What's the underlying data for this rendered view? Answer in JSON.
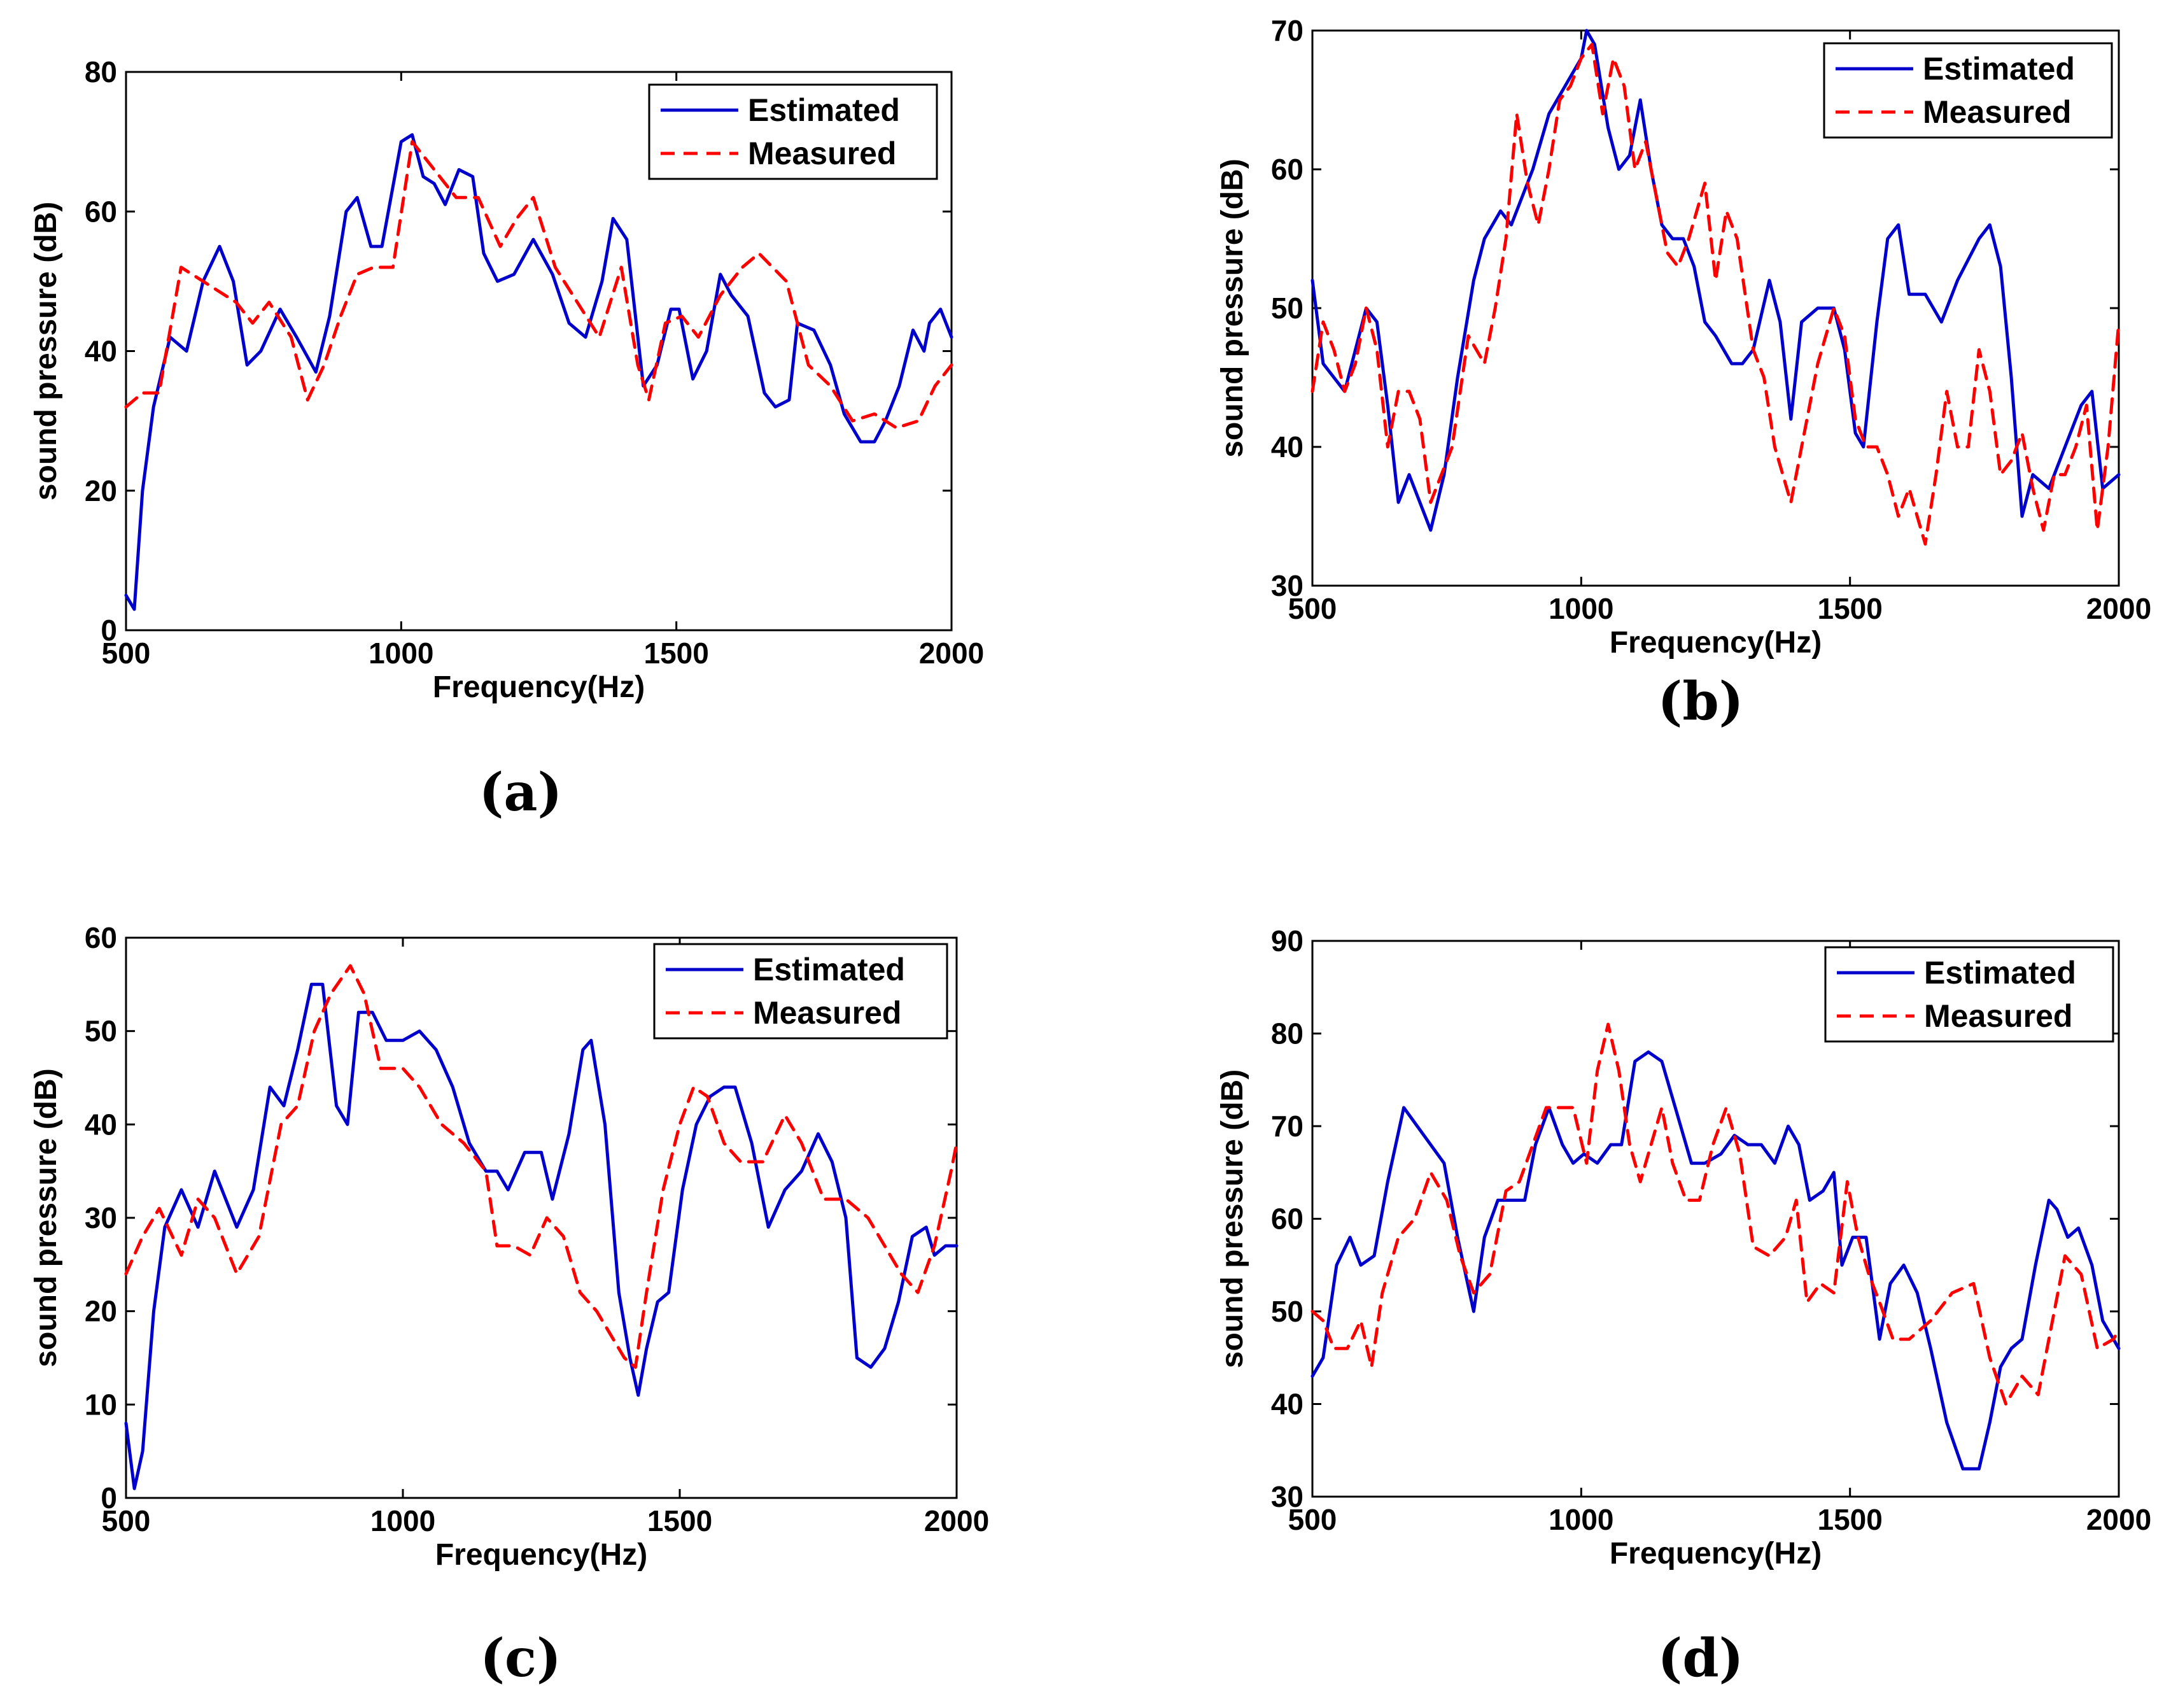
{
  "figure": {
    "panel_order": [
      "(a)",
      "(b)",
      "(c)",
      "(d)"
    ]
  },
  "chart_data": [
    {
      "type": "line",
      "panel": "(a)",
      "caption": "(a)",
      "xlabel": "Frequency(Hz)",
      "ylabel": "sound pressure (dB)",
      "xlim": [
        500,
        2000
      ],
      "ylim": [
        0,
        80
      ],
      "xticks": [
        500,
        1000,
        1500,
        2000
      ],
      "yticks": [
        0,
        20,
        40,
        60,
        80
      ],
      "legend_position": "top-right",
      "series": [
        {
          "name": "Estimated",
          "color": "#0000CC",
          "style": "solid",
          "x": [
            500,
            515,
            530,
            550,
            580,
            610,
            640,
            670,
            695,
            720,
            745,
            780,
            810,
            845,
            870,
            900,
            920,
            945,
            965,
            1000,
            1020,
            1040,
            1060,
            1080,
            1105,
            1130,
            1150,
            1175,
            1205,
            1240,
            1275,
            1305,
            1335,
            1365,
            1385,
            1410,
            1440,
            1465,
            1490,
            1505,
            1530,
            1555,
            1580,
            1600,
            1630,
            1660,
            1680,
            1705,
            1720,
            1750,
            1780,
            1805,
            1835,
            1860,
            1880,
            1905,
            1930,
            1950,
            1960,
            1980,
            2000
          ],
          "y": [
            5,
            3,
            20,
            32,
            42,
            40,
            50,
            55,
            50,
            38,
            40,
            46,
            42,
            37,
            45,
            60,
            62,
            55,
            55,
            70,
            71,
            65,
            64,
            61,
            66,
            65,
            54,
            50,
            51,
            56,
            51,
            44,
            42,
            50,
            59,
            56,
            35,
            38,
            46,
            46,
            36,
            40,
            51,
            48,
            45,
            34,
            32,
            33,
            44,
            43,
            38,
            31,
            27,
            27,
            30,
            35,
            43,
            40,
            44,
            46,
            42
          ]
        },
        {
          "name": "Measured",
          "color": "#FF0000",
          "style": "dashed",
          "x": [
            500,
            530,
            560,
            600,
            640,
            700,
            730,
            760,
            800,
            830,
            860,
            890,
            920,
            950,
            985,
            1020,
            1050,
            1100,
            1140,
            1180,
            1210,
            1240,
            1280,
            1320,
            1360,
            1400,
            1430,
            1450,
            1480,
            1510,
            1540,
            1580,
            1620,
            1650,
            1700,
            1740,
            1780,
            1820,
            1860,
            1900,
            1940,
            1970,
            2000
          ],
          "y": [
            32,
            34,
            34,
            52,
            50,
            47,
            44,
            47,
            42,
            33,
            38,
            45,
            51,
            52,
            52,
            70,
            67,
            62,
            62,
            55,
            59,
            62,
            52,
            47,
            42,
            52,
            38,
            33,
            44,
            45,
            42,
            48,
            52,
            54,
            50,
            38,
            35,
            30,
            31,
            29,
            30,
            35,
            38
          ]
        }
      ]
    },
    {
      "type": "line",
      "panel": "(b)",
      "caption": "(b)",
      "xlabel": "Frequency(Hz)",
      "ylabel": "sound pressure (dB)",
      "xlim": [
        500,
        2000
      ],
      "ylim": [
        30,
        70
      ],
      "xticks": [
        500,
        1000,
        1500,
        2000
      ],
      "yticks": [
        30,
        40,
        50,
        60,
        70
      ],
      "legend_position": "top-right",
      "series": [
        {
          "name": "Estimated",
          "color": "#0000CC",
          "style": "solid",
          "x": [
            500,
            520,
            540,
            560,
            580,
            600,
            620,
            640,
            660,
            680,
            700,
            720,
            745,
            770,
            800,
            820,
            850,
            870,
            890,
            910,
            940,
            970,
            1000,
            1010,
            1025,
            1050,
            1070,
            1090,
            1110,
            1130,
            1150,
            1170,
            1190,
            1210,
            1230,
            1250,
            1280,
            1300,
            1320,
            1350,
            1370,
            1390,
            1410,
            1440,
            1470,
            1490,
            1510,
            1525,
            1550,
            1570,
            1590,
            1610,
            1640,
            1670,
            1700,
            1740,
            1760,
            1780,
            1800,
            1820,
            1840,
            1870,
            1900,
            1930,
            1950,
            1970,
            2000
          ],
          "y": [
            52,
            46,
            45,
            44,
            47,
            50,
            49,
            43,
            36,
            38,
            36,
            34,
            38,
            45,
            52,
            55,
            57,
            56,
            58,
            60,
            64,
            66,
            68,
            70,
            69,
            63,
            60,
            61,
            65,
            60,
            56,
            55,
            55,
            53,
            49,
            48,
            46,
            46,
            47,
            52,
            49,
            42,
            49,
            50,
            50,
            47,
            41,
            40,
            49,
            55,
            56,
            51,
            51,
            49,
            52,
            55,
            56,
            53,
            45,
            35,
            38,
            37,
            40,
            43,
            44,
            37,
            38
          ]
        },
        {
          "name": "Measured",
          "color": "#FF0000",
          "style": "dashed",
          "x": [
            500,
            520,
            540,
            560,
            580,
            600,
            620,
            640,
            660,
            680,
            700,
            720,
            740,
            760,
            790,
            820,
            840,
            860,
            880,
            900,
            920,
            940,
            960,
            980,
            1000,
            1020,
            1040,
            1060,
            1080,
            1100,
            1120,
            1140,
            1160,
            1180,
            1200,
            1230,
            1250,
            1270,
            1290,
            1320,
            1340,
            1360,
            1390,
            1410,
            1440,
            1470,
            1490,
            1510,
            1530,
            1550,
            1570,
            1590,
            1610,
            1640,
            1660,
            1680,
            1700,
            1720,
            1740,
            1760,
            1780,
            1800,
            1820,
            1840,
            1860,
            1880,
            1900,
            1920,
            1940,
            1960,
            1980,
            2000
          ],
          "y": [
            44,
            49,
            47,
            44,
            46,
            50,
            47,
            40,
            44,
            44,
            42,
            36,
            38,
            40,
            48,
            46,
            50,
            55,
            64,
            59,
            56,
            60,
            65,
            66,
            68,
            69,
            64,
            68,
            66,
            60,
            62,
            58,
            54,
            53,
            55,
            59,
            52,
            57,
            55,
            47,
            45,
            40,
            36,
            40,
            46,
            50,
            48,
            42,
            40,
            40,
            38,
            35,
            37,
            33,
            38,
            44,
            40,
            40,
            47,
            44,
            38,
            39,
            41,
            37,
            34,
            38,
            38,
            40,
            43,
            34,
            40,
            49
          ]
        }
      ]
    },
    {
      "type": "line",
      "panel": "(c)",
      "caption": "(c)",
      "xlabel": "Frequency(Hz)",
      "ylabel": "sound pressure (dB)",
      "xlim": [
        500,
        2000
      ],
      "ylim": [
        0,
        60
      ],
      "xticks": [
        500,
        1000,
        1500,
        2000
      ],
      "yticks": [
        0,
        10,
        20,
        30,
        40,
        50,
        60
      ],
      "legend_position": "top-right",
      "series": [
        {
          "name": "Estimated",
          "color": "#0000CC",
          "style": "solid",
          "x": [
            500,
            515,
            530,
            550,
            570,
            600,
            630,
            660,
            680,
            700,
            730,
            760,
            785,
            810,
            835,
            855,
            880,
            900,
            920,
            945,
            970,
            1000,
            1030,
            1060,
            1090,
            1120,
            1150,
            1170,
            1190,
            1220,
            1250,
            1270,
            1300,
            1325,
            1340,
            1365,
            1390,
            1410,
            1425,
            1440,
            1460,
            1480,
            1505,
            1530,
            1555,
            1580,
            1600,
            1630,
            1660,
            1690,
            1720,
            1750,
            1775,
            1800,
            1820,
            1845,
            1870,
            1895,
            1920,
            1945,
            1960,
            1980,
            2000
          ],
          "y": [
            8,
            1,
            5,
            20,
            29,
            33,
            29,
            35,
            32,
            29,
            33,
            44,
            42,
            48,
            55,
            55,
            42,
            40,
            52,
            52,
            49,
            49,
            50,
            48,
            44,
            38,
            35,
            35,
            33,
            37,
            37,
            32,
            39,
            48,
            49,
            40,
            22,
            15,
            11,
            16,
            21,
            22,
            33,
            40,
            43,
            44,
            44,
            38,
            29,
            33,
            35,
            39,
            36,
            30,
            15,
            14,
            16,
            21,
            28,
            29,
            26,
            27,
            27
          ]
        },
        {
          "name": "Measured",
          "color": "#FF0000",
          "style": "dashed",
          "x": [
            500,
            530,
            560,
            600,
            630,
            660,
            700,
            740,
            780,
            810,
            840,
            870,
            905,
            930,
            960,
            1000,
            1030,
            1070,
            1110,
            1150,
            1170,
            1200,
            1230,
            1260,
            1290,
            1320,
            1350,
            1380,
            1400,
            1420,
            1440,
            1470,
            1500,
            1525,
            1550,
            1580,
            1610,
            1650,
            1690,
            1720,
            1760,
            1800,
            1840,
            1870,
            1900,
            1930,
            1960,
            1990,
            2000
          ],
          "y": [
            24,
            28,
            31,
            26,
            32,
            30,
            24,
            28,
            40,
            42,
            50,
            54,
            57,
            54,
            46,
            46,
            44,
            40,
            38,
            35,
            27,
            27,
            26,
            30,
            28,
            22,
            20,
            17,
            15,
            14,
            22,
            33,
            40,
            44,
            43,
            38,
            36,
            36,
            41,
            38,
            32,
            32,
            30,
            27,
            24,
            22,
            27,
            35,
            38
          ]
        }
      ]
    },
    {
      "type": "line",
      "panel": "(d)",
      "caption": "(d)",
      "xlabel": "Frequency(Hz)",
      "ylabel": "sound pressure (dB)",
      "xlim": [
        500,
        2000
      ],
      "ylim": [
        30,
        90
      ],
      "xticks": [
        500,
        1000,
        1500,
        2000
      ],
      "yticks": [
        30,
        40,
        50,
        60,
        70,
        80,
        90
      ],
      "legend_position": "top-right",
      "series": [
        {
          "name": "Estimated",
          "color": "#0000CC",
          "style": "solid",
          "x": [
            500,
            520,
            545,
            570,
            590,
            615,
            640,
            670,
            695,
            720,
            745,
            770,
            800,
            820,
            845,
            870,
            895,
            915,
            940,
            965,
            985,
            1005,
            1030,
            1055,
            1075,
            1100,
            1125,
            1150,
            1175,
            1205,
            1230,
            1260,
            1285,
            1310,
            1335,
            1360,
            1385,
            1405,
            1425,
            1450,
            1470,
            1485,
            1505,
            1530,
            1555,
            1575,
            1600,
            1625,
            1650,
            1680,
            1710,
            1740,
            1760,
            1780,
            1800,
            1820,
            1845,
            1870,
            1885,
            1905,
            1925,
            1950,
            1970,
            2000
          ],
          "y": [
            43,
            45,
            55,
            58,
            55,
            56,
            64,
            72,
            70,
            68,
            66,
            58,
            50,
            58,
            62,
            62,
            62,
            68,
            72,
            68,
            66,
            67,
            66,
            68,
            68,
            77,
            78,
            77,
            72,
            66,
            66,
            67,
            69,
            68,
            68,
            66,
            70,
            68,
            62,
            63,
            65,
            55,
            58,
            58,
            47,
            53,
            55,
            52,
            46,
            38,
            33,
            33,
            38,
            44,
            46,
            47,
            55,
            62,
            61,
            58,
            59,
            55,
            49,
            46
          ]
        },
        {
          "name": "Measured",
          "color": "#FF0000",
          "style": "dashed",
          "x": [
            500,
            520,
            540,
            565,
            590,
            610,
            630,
            660,
            690,
            720,
            750,
            775,
            800,
            830,
            860,
            885,
            910,
            935,
            960,
            985,
            1010,
            1030,
            1050,
            1070,
            1090,
            1110,
            1130,
            1150,
            1170,
            1195,
            1220,
            1245,
            1270,
            1295,
            1320,
            1350,
            1380,
            1400,
            1420,
            1445,
            1470,
            1495,
            1515,
            1535,
            1555,
            1580,
            1610,
            1650,
            1690,
            1730,
            1760,
            1790,
            1820,
            1850,
            1880,
            1900,
            1930,
            1960,
            1990,
            2000
          ],
          "y": [
            50,
            49,
            46,
            46,
            49,
            44,
            52,
            58,
            60,
            65,
            62,
            56,
            52,
            54,
            63,
            64,
            68,
            72,
            72,
            72,
            66,
            76,
            81,
            76,
            68,
            64,
            68,
            72,
            66,
            62,
            62,
            68,
            72,
            67,
            57,
            56,
            58,
            62,
            51,
            53,
            52,
            64,
            58,
            54,
            51,
            47,
            47,
            49,
            52,
            53,
            45,
            40,
            43,
            41,
            50,
            56,
            54,
            46,
            47,
            48
          ]
        }
      ]
    }
  ]
}
